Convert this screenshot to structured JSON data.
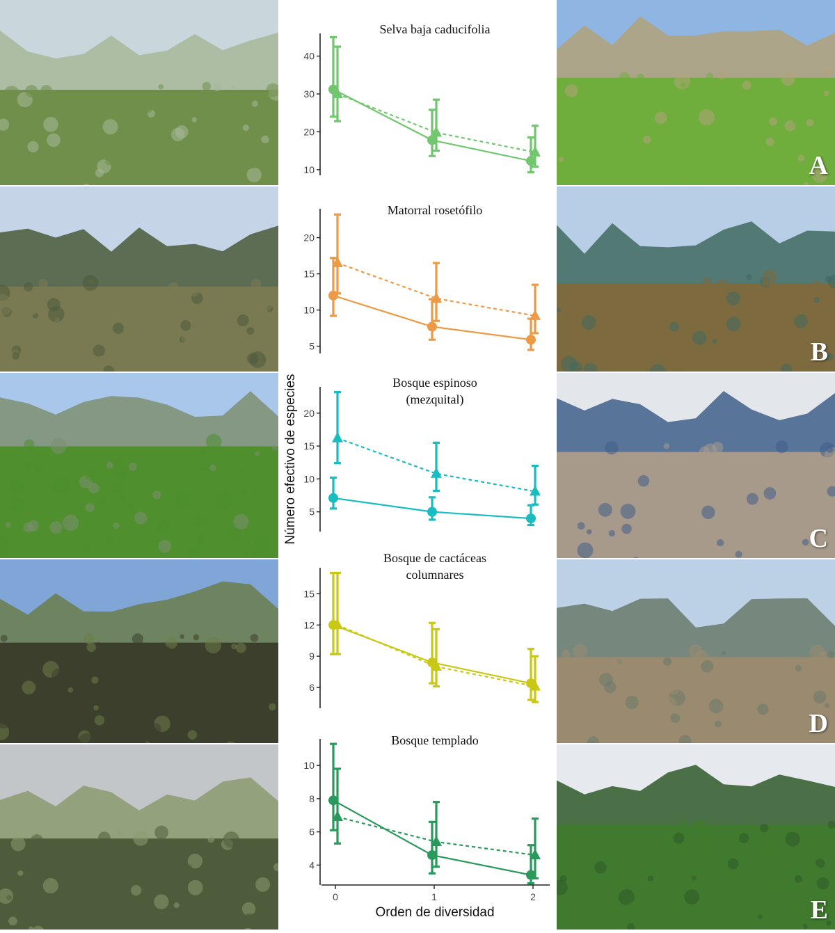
{
  "photos": {
    "left": [
      {
        "name": "selva-baja-landscape",
        "sky": "#c9d6dc",
        "ground": "#6f8f4a",
        "accent": "#a8b89a"
      },
      {
        "name": "matorral-landscape",
        "sky": "#c5d4e6",
        "ground": "#7a7a52",
        "accent": "#4a5a3a"
      },
      {
        "name": "espinoso-landscape",
        "sky": "#a9c7ea",
        "ground": "#4f8f2e",
        "accent": "#7e8f72"
      },
      {
        "name": "cactaceas-landscape",
        "sky": "#7fa6d6",
        "ground": "#3c3f2c",
        "accent": "#6b7d4a"
      },
      {
        "name": "templado-landscape",
        "sky": "#c2c6c8",
        "ground": "#4e5c3c",
        "accent": "#8c9a70"
      }
    ],
    "right": [
      {
        "name": "selva-baja-field",
        "letter": "A",
        "sky": "#8fb6e2",
        "ground": "#6fae3c",
        "accent": "#b2a27a"
      },
      {
        "name": "matorral-field",
        "letter": "B",
        "sky": "#b8cde6",
        "ground": "#7d6a3e",
        "accent": "#3f6a5e"
      },
      {
        "name": "espinoso-field",
        "letter": "C",
        "sky": "#e3e6ea",
        "ground": "#a89a8a",
        "accent": "#3f5f8a"
      },
      {
        "name": "cactaceas-field",
        "letter": "D",
        "sky": "#bcd0e6",
        "ground": "#9a8a70",
        "accent": "#6a7a6a"
      },
      {
        "name": "templado-field",
        "letter": "E",
        "sky": "#e6eaee",
        "ground": "#3f7a2e",
        "accent": "#2f5a2a"
      }
    ]
  },
  "axis": {
    "ylabel": "Número efectivo de especies",
    "xlabel": "Orden de diversidad",
    "x_ticks": [
      "0",
      "1",
      "2"
    ]
  },
  "chart_data": [
    {
      "type": "line",
      "title": "Selva baja caducifolia",
      "color": "#72c66f",
      "x": [
        0,
        1,
        2
      ],
      "ylim": [
        8.5,
        46
      ],
      "y_ticks": [
        10,
        20,
        30,
        40
      ],
      "series": [
        {
          "marker": "circle",
          "line": "solid",
          "values": [
            31.2,
            17.8,
            12.3
          ],
          "err_low": [
            24.0,
            13.6,
            9.3
          ],
          "err_high": [
            45.0,
            25.8,
            18.5
          ]
        },
        {
          "marker": "triangle",
          "line": "dashed",
          "values": [
            30.0,
            19.8,
            14.6
          ],
          "err_low": [
            22.8,
            15.0,
            10.8
          ],
          "err_high": [
            42.5,
            28.5,
            21.6
          ]
        }
      ]
    },
    {
      "type": "line",
      "title": "Matorral rosetófilo",
      "color": "#ed9a46",
      "x": [
        0,
        1,
        2
      ],
      "ylim": [
        4,
        24
      ],
      "y_ticks": [
        5,
        10,
        15,
        20
      ],
      "series": [
        {
          "marker": "circle",
          "line": "solid",
          "values": [
            12.0,
            7.7,
            5.9
          ],
          "err_low": [
            9.2,
            5.9,
            4.5
          ],
          "err_high": [
            17.2,
            11.5,
            8.8
          ]
        },
        {
          "marker": "triangle",
          "line": "dashed",
          "values": [
            16.5,
            11.6,
            9.2
          ],
          "err_low": [
            12.3,
            8.5,
            6.8
          ],
          "err_high": [
            23.2,
            16.5,
            13.5
          ]
        }
      ]
    },
    {
      "type": "line",
      "title": "Bosque espinoso\n(mezquital)",
      "color": "#19bcc0",
      "x": [
        0,
        1,
        2
      ],
      "ylim": [
        2,
        24
      ],
      "y_ticks": [
        5,
        10,
        15,
        20
      ],
      "series": [
        {
          "marker": "circle",
          "line": "solid",
          "values": [
            7.1,
            5.0,
            4.0
          ],
          "err_low": [
            5.5,
            3.8,
            3.0
          ],
          "err_high": [
            10.2,
            7.2,
            6.0
          ]
        },
        {
          "marker": "triangle",
          "line": "dashed",
          "values": [
            16.2,
            10.8,
            8.1
          ],
          "err_low": [
            12.4,
            8.2,
            6.1
          ],
          "err_high": [
            23.2,
            15.5,
            12.0
          ]
        }
      ]
    },
    {
      "type": "line",
      "title": "Bosque de cactáceas\ncolumnares",
      "color": "#c9c817",
      "x": [
        0,
        1,
        2
      ],
      "ylim": [
        4,
        17.5
      ],
      "y_ticks": [
        6,
        9,
        12,
        15
      ],
      "series": [
        {
          "marker": "circle",
          "line": "solid",
          "values": [
            12.0,
            8.4,
            6.4
          ],
          "err_low": [
            9.2,
            6.4,
            4.8
          ],
          "err_high": [
            17.0,
            12.2,
            9.7
          ]
        },
        {
          "marker": "triangle",
          "line": "dashed",
          "values": [
            12.0,
            8.0,
            6.1
          ],
          "err_low": [
            9.2,
            6.1,
            4.6
          ],
          "err_high": [
            17.0,
            11.6,
            9.0
          ]
        }
      ]
    },
    {
      "type": "line",
      "title": "Bosque templado",
      "color": "#2a9a5c",
      "x": [
        0,
        1,
        2
      ],
      "ylim": [
        2.8,
        11.6
      ],
      "y_ticks": [
        4,
        6,
        8,
        10
      ],
      "series": [
        {
          "marker": "circle",
          "line": "solid",
          "values": [
            7.9,
            4.6,
            3.4
          ],
          "err_low": [
            6.1,
            3.5,
            2.9
          ],
          "err_high": [
            11.3,
            6.6,
            5.2
          ]
        },
        {
          "marker": "triangle",
          "line": "dashed",
          "values": [
            6.9,
            5.4,
            4.6
          ],
          "err_low": [
            5.3,
            3.9,
            3.2
          ],
          "err_high": [
            9.8,
            7.8,
            6.8
          ]
        }
      ]
    }
  ]
}
